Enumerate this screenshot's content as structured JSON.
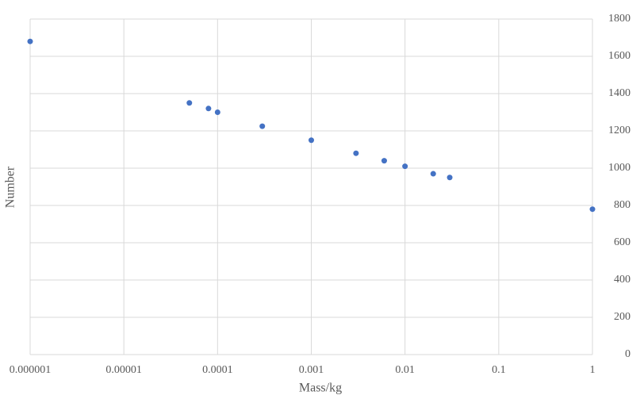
{
  "chart_data": {
    "type": "scatter",
    "x_label": "Mass/kg",
    "y_label": "Number",
    "x_scale": "log",
    "y_axis_side": "right",
    "grid": true,
    "color": "#4472c4",
    "x": [
      1e-06,
      5e-05,
      8e-05,
      0.0001,
      0.0003,
      0.001,
      0.003,
      0.006,
      0.01,
      0.02,
      0.03,
      1
    ],
    "values": [
      1680,
      1350,
      1320,
      1300,
      1225,
      1150,
      1080,
      1040,
      1010,
      970,
      950,
      780
    ],
    "xlim": [
      1e-06,
      1
    ],
    "xticks": [
      1e-06,
      1e-05,
      0.0001,
      0.001,
      0.01,
      0.1,
      1
    ],
    "ylim": [
      0,
      1800
    ],
    "yticks": [
      0,
      200,
      400,
      600,
      800,
      1000,
      1200,
      1400,
      1600,
      1800
    ]
  }
}
